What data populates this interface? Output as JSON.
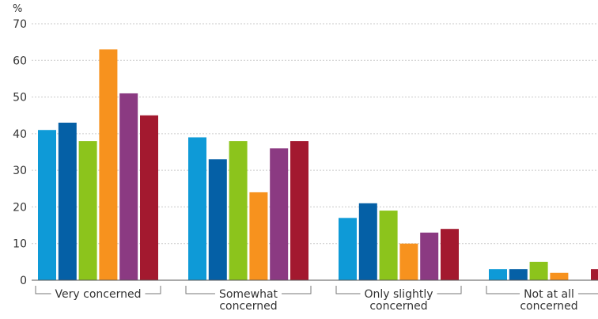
{
  "chart_data": {
    "type": "bar",
    "title": "",
    "xlabel": "",
    "ylabel": "%",
    "ylim": [
      0,
      70
    ],
    "yticks": [
      0,
      10,
      20,
      30,
      40,
      50,
      60,
      70
    ],
    "grid": true,
    "categories": [
      [
        "Very concerned"
      ],
      [
        "Somewhat",
        "concerned"
      ],
      [
        "Only slightly",
        "concerned"
      ],
      [
        "Not at all",
        "concerned"
      ]
    ],
    "series": [
      {
        "color": "#0e9ad7",
        "values": [
          41,
          39,
          17,
          3
        ]
      },
      {
        "color": "#0560a6",
        "values": [
          43,
          33,
          21,
          3
        ]
      },
      {
        "color": "#8cc41c",
        "values": [
          38,
          38,
          19,
          5
        ]
      },
      {
        "color": "#f7921e",
        "values": [
          63,
          24,
          10,
          2
        ]
      },
      {
        "color": "#8b3a82",
        "values": [
          51,
          36,
          13,
          0
        ]
      },
      {
        "color": "#a3192f",
        "values": [
          45,
          38,
          14,
          3
        ]
      }
    ]
  }
}
